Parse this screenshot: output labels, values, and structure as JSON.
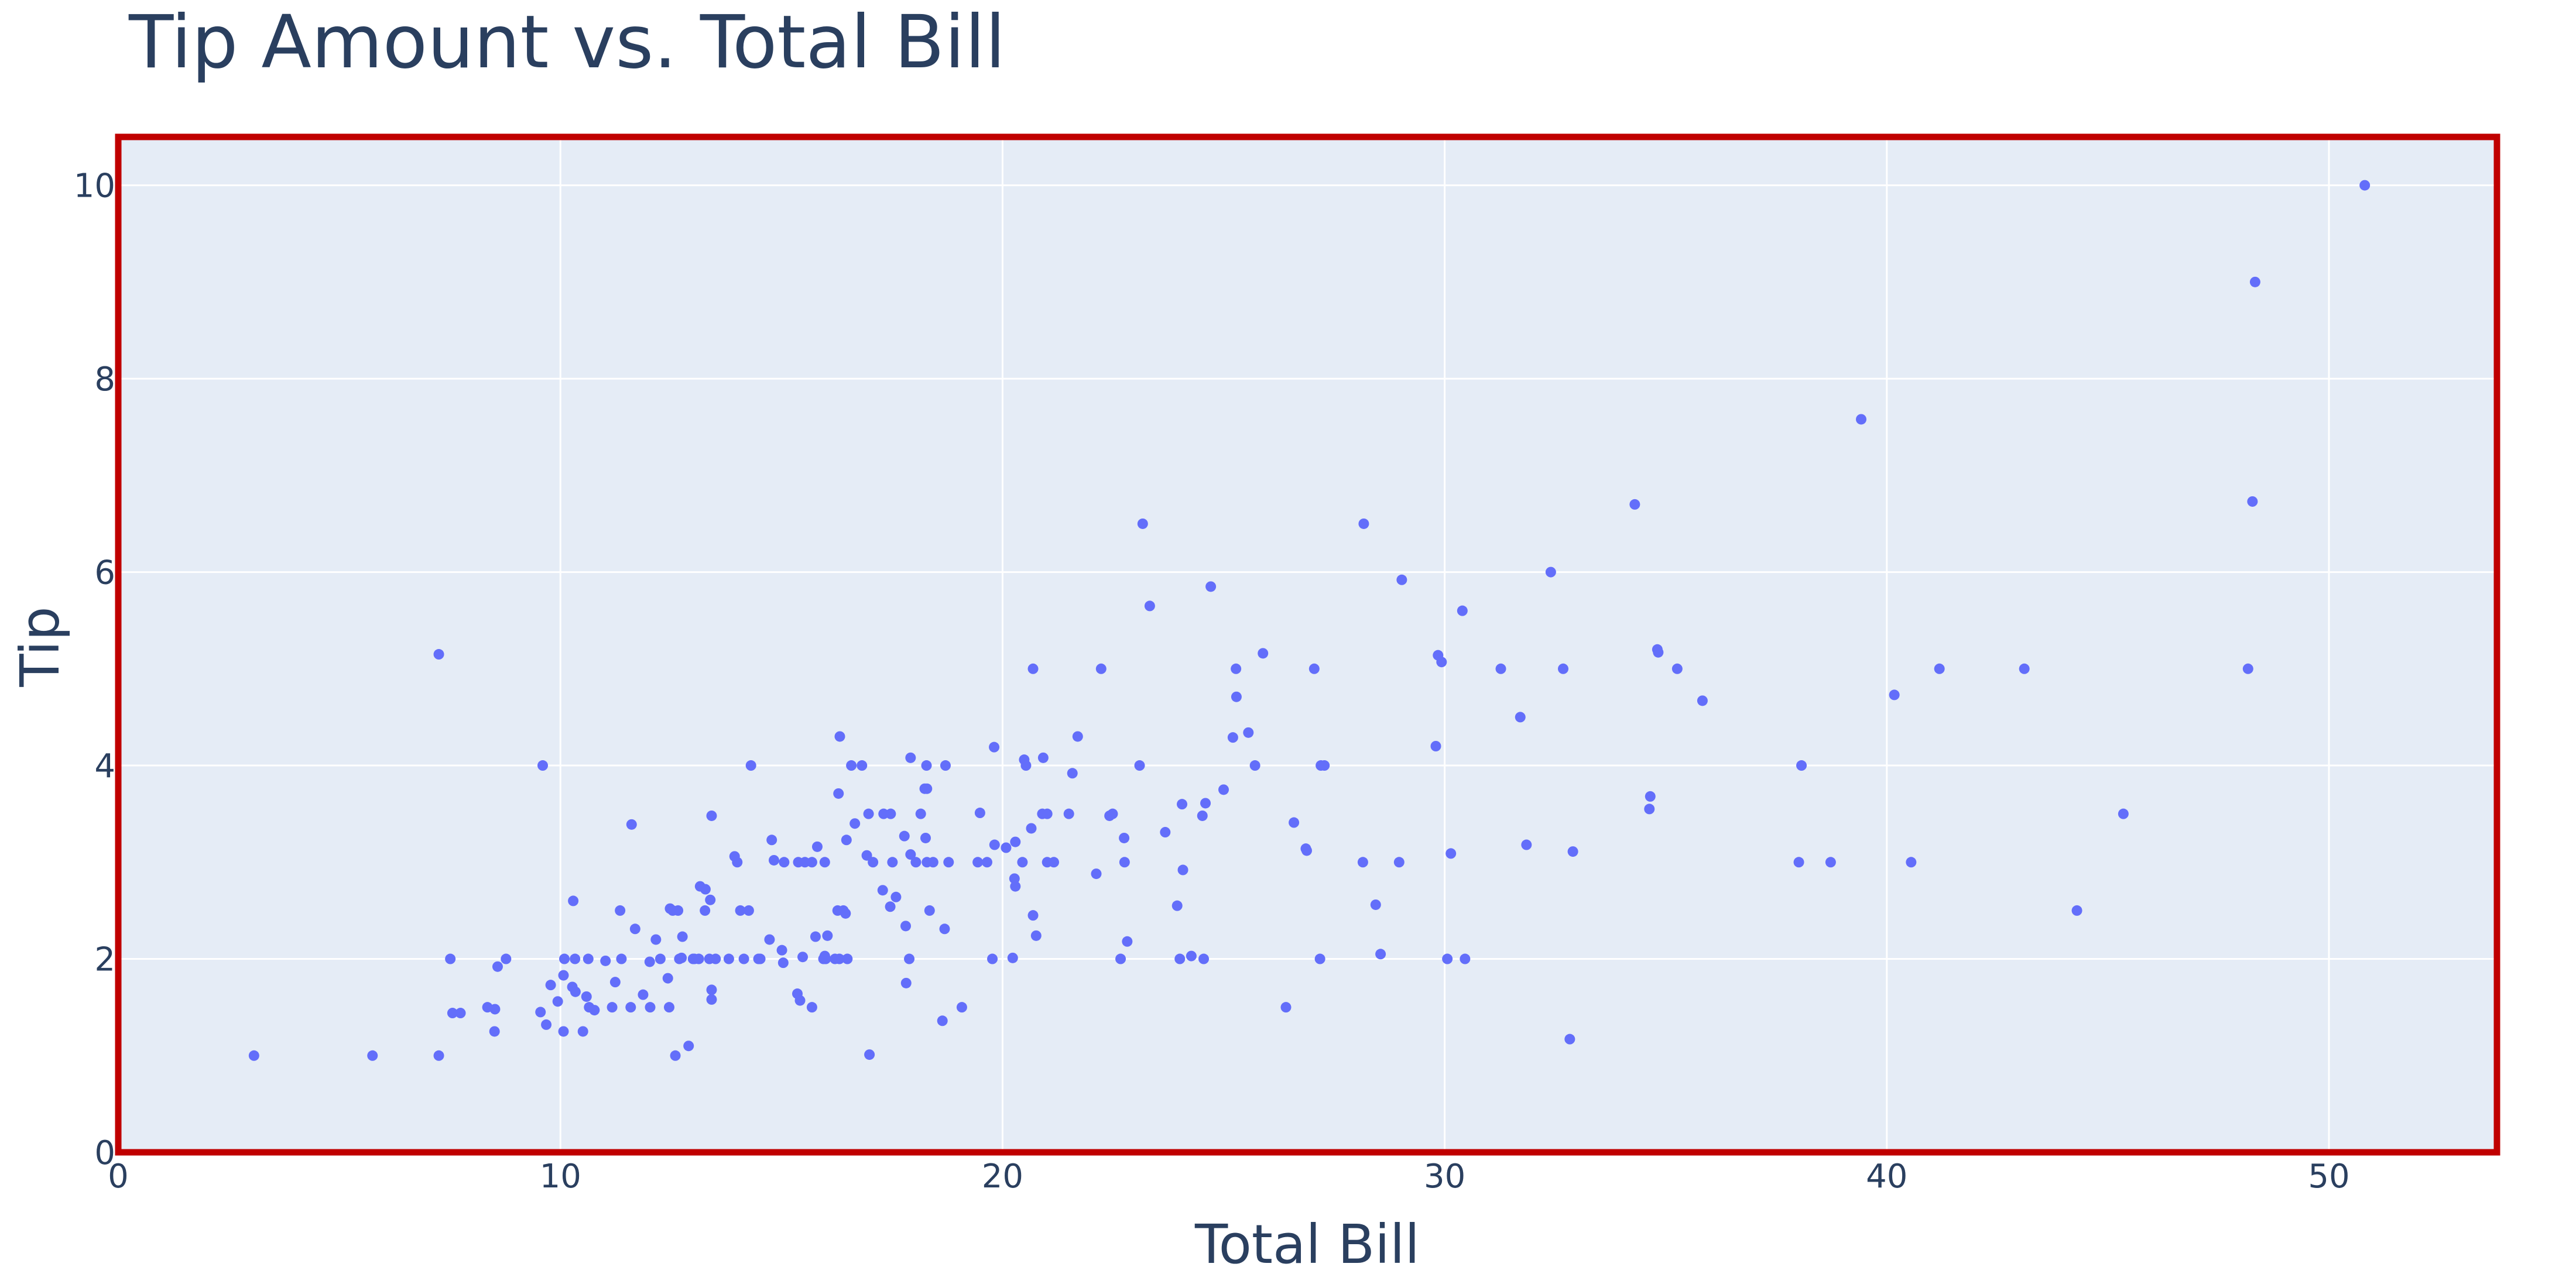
{
  "chart_data": {
    "type": "scatter",
    "title": "Tip Amount vs. Total Bill",
    "xlabel": "Total Bill",
    "ylabel": "Tip",
    "xlim": [
      0,
      53.8
    ],
    "ylim": [
      0,
      10.5
    ],
    "x_ticks": [
      0,
      10,
      20,
      30,
      40,
      50
    ],
    "y_ticks": [
      0,
      2,
      4,
      6,
      8,
      10
    ],
    "grid": true,
    "marker_color": "#636efa",
    "plot_background": "#e5ecf6",
    "frame_color": "#c00000",
    "points": [
      [
        3.07,
        1.0
      ],
      [
        5.75,
        1.0
      ],
      [
        7.25,
        1.0
      ],
      [
        7.25,
        5.15
      ],
      [
        7.51,
        2.0
      ],
      [
        7.56,
        1.44
      ],
      [
        7.74,
        1.44
      ],
      [
        8.35,
        1.5
      ],
      [
        8.51,
        1.25
      ],
      [
        8.52,
        1.48
      ],
      [
        8.58,
        1.92
      ],
      [
        8.77,
        2.0
      ],
      [
        9.55,
        1.45
      ],
      [
        9.6,
        4.0
      ],
      [
        9.68,
        1.32
      ],
      [
        9.78,
        1.73
      ],
      [
        9.94,
        1.56
      ],
      [
        10.07,
        1.25
      ],
      [
        10.07,
        1.83
      ],
      [
        10.09,
        2.0
      ],
      [
        10.27,
        1.71
      ],
      [
        10.29,
        2.6
      ],
      [
        10.33,
        2.0
      ],
      [
        10.34,
        1.66
      ],
      [
        10.51,
        1.25
      ],
      [
        10.59,
        1.61
      ],
      [
        10.63,
        2.0
      ],
      [
        10.65,
        1.5
      ],
      [
        10.77,
        1.47
      ],
      [
        11.02,
        1.98
      ],
      [
        11.17,
        1.5
      ],
      [
        11.24,
        1.76
      ],
      [
        11.35,
        2.5
      ],
      [
        11.38,
        2.0
      ],
      [
        11.59,
        1.5
      ],
      [
        11.61,
        3.39
      ],
      [
        11.69,
        2.31
      ],
      [
        11.87,
        1.63
      ],
      [
        12.02,
        1.97
      ],
      [
        12.03,
        1.5
      ],
      [
        12.16,
        2.2
      ],
      [
        12.26,
        2.0
      ],
      [
        12.43,
        1.8
      ],
      [
        12.46,
        1.5
      ],
      [
        12.48,
        2.52
      ],
      [
        12.54,
        2.5
      ],
      [
        12.6,
        1.0
      ],
      [
        12.66,
        2.5
      ],
      [
        12.69,
        2.0
      ],
      [
        12.74,
        2.01
      ],
      [
        12.76,
        2.23
      ],
      [
        12.9,
        1.1
      ],
      [
        13.0,
        2.0
      ],
      [
        13.03,
        2.0
      ],
      [
        13.13,
        2.0
      ],
      [
        13.16,
        2.75
      ],
      [
        13.27,
        2.5
      ],
      [
        13.28,
        2.72
      ],
      [
        13.37,
        2.0
      ],
      [
        13.39,
        2.61
      ],
      [
        13.42,
        3.48
      ],
      [
        13.42,
        1.58
      ],
      [
        13.42,
        1.68
      ],
      [
        13.51,
        2.0
      ],
      [
        13.81,
        2.0
      ],
      [
        13.94,
        3.06
      ],
      [
        14.0,
        3.0
      ],
      [
        14.07,
        2.5
      ],
      [
        14.15,
        2.0
      ],
      [
        14.26,
        2.5
      ],
      [
        14.31,
        4.0
      ],
      [
        14.48,
        2.0
      ],
      [
        14.52,
        2.0
      ],
      [
        14.73,
        2.2
      ],
      [
        14.78,
        3.23
      ],
      [
        14.83,
        3.02
      ],
      [
        15.01,
        2.09
      ],
      [
        15.04,
        1.96
      ],
      [
        15.06,
        3.0
      ],
      [
        15.36,
        1.64
      ],
      [
        15.38,
        3.0
      ],
      [
        15.42,
        1.57
      ],
      [
        15.48,
        2.02
      ],
      [
        15.53,
        3.0
      ],
      [
        15.69,
        3.0
      ],
      [
        15.69,
        1.5
      ],
      [
        15.77,
        2.23
      ],
      [
        15.81,
        3.16
      ],
      [
        15.95,
        2.0
      ],
      [
        15.98,
        2.03
      ],
      [
        15.98,
        3.0
      ],
      [
        16.0,
        2.0
      ],
      [
        16.04,
        2.24
      ],
      [
        16.21,
        2.0
      ],
      [
        16.27,
        2.5
      ],
      [
        16.29,
        3.71
      ],
      [
        16.31,
        2.0
      ],
      [
        16.32,
        4.3
      ],
      [
        16.4,
        2.5
      ],
      [
        16.45,
        2.47
      ],
      [
        16.47,
        3.23
      ],
      [
        16.49,
        2.0
      ],
      [
        16.58,
        4.0
      ],
      [
        16.66,
        3.4
      ],
      [
        16.82,
        4.0
      ],
      [
        16.93,
        3.07
      ],
      [
        16.97,
        3.5
      ],
      [
        16.99,
        1.01
      ],
      [
        17.07,
        3.0
      ],
      [
        17.29,
        2.71
      ],
      [
        17.31,
        3.5
      ],
      [
        17.46,
        2.54
      ],
      [
        17.47,
        3.5
      ],
      [
        17.51,
        3.0
      ],
      [
        17.59,
        2.64
      ],
      [
        17.78,
        3.27
      ],
      [
        17.81,
        2.34
      ],
      [
        17.82,
        1.75
      ],
      [
        17.89,
        2.0
      ],
      [
        17.92,
        4.08
      ],
      [
        17.92,
        3.08
      ],
      [
        18.04,
        3.0
      ],
      [
        18.15,
        3.5
      ],
      [
        18.24,
        3.76
      ],
      [
        18.26,
        3.25
      ],
      [
        18.28,
        4.0
      ],
      [
        18.29,
        3.76
      ],
      [
        18.29,
        3.0
      ],
      [
        18.35,
        2.5
      ],
      [
        18.43,
        3.0
      ],
      [
        18.64,
        1.36
      ],
      [
        18.69,
        2.31
      ],
      [
        18.71,
        4.0
      ],
      [
        18.78,
        3.0
      ],
      [
        19.08,
        1.5
      ],
      [
        19.44,
        3.0
      ],
      [
        19.49,
        3.51
      ],
      [
        19.65,
        3.0
      ],
      [
        19.77,
        2.0
      ],
      [
        19.81,
        4.19
      ],
      [
        19.82,
        3.18
      ],
      [
        20.08,
        3.15
      ],
      [
        20.23,
        2.01
      ],
      [
        20.27,
        2.83
      ],
      [
        20.29,
        2.75
      ],
      [
        20.29,
        3.21
      ],
      [
        20.45,
        3.0
      ],
      [
        20.49,
        4.06
      ],
      [
        20.53,
        4.0
      ],
      [
        20.65,
        3.35
      ],
      [
        20.69,
        5.0
      ],
      [
        20.69,
        2.45
      ],
      [
        20.76,
        2.24
      ],
      [
        20.9,
        3.5
      ],
      [
        20.92,
        4.08
      ],
      [
        21.01,
        3.5
      ],
      [
        21.01,
        3.0
      ],
      [
        21.16,
        3.0
      ],
      [
        21.5,
        3.5
      ],
      [
        21.58,
        3.92
      ],
      [
        21.7,
        4.3
      ],
      [
        22.12,
        2.88
      ],
      [
        22.23,
        5.0
      ],
      [
        22.42,
        3.48
      ],
      [
        22.49,
        3.5
      ],
      [
        22.67,
        2.0
      ],
      [
        22.75,
        3.25
      ],
      [
        22.76,
        3.0
      ],
      [
        22.82,
        2.18
      ],
      [
        23.1,
        4.0
      ],
      [
        23.17,
        6.5
      ],
      [
        23.33,
        5.65
      ],
      [
        23.68,
        3.31
      ],
      [
        23.95,
        2.55
      ],
      [
        24.01,
        2.0
      ],
      [
        24.06,
        3.6
      ],
      [
        24.08,
        2.92
      ],
      [
        24.27,
        2.03
      ],
      [
        24.52,
        3.48
      ],
      [
        24.55,
        2.0
      ],
      [
        24.59,
        3.61
      ],
      [
        24.71,
        5.85
      ],
      [
        25.0,
        3.75
      ],
      [
        25.21,
        4.29
      ],
      [
        25.28,
        5.0
      ],
      [
        25.29,
        4.71
      ],
      [
        25.56,
        4.34
      ],
      [
        25.71,
        4.0
      ],
      [
        25.89,
        5.16
      ],
      [
        26.41,
        1.5
      ],
      [
        26.59,
        3.41
      ],
      [
        26.86,
        3.14
      ],
      [
        26.88,
        3.12
      ],
      [
        27.05,
        5.0
      ],
      [
        27.18,
        2.0
      ],
      [
        27.2,
        4.0
      ],
      [
        27.28,
        4.0
      ],
      [
        28.15,
        3.0
      ],
      [
        28.17,
        6.5
      ],
      [
        28.44,
        2.56
      ],
      [
        28.55,
        2.05
      ],
      [
        28.97,
        3.0
      ],
      [
        29.03,
        5.92
      ],
      [
        29.8,
        4.2
      ],
      [
        29.85,
        5.14
      ],
      [
        29.93,
        5.07
      ],
      [
        30.06,
        2.0
      ],
      [
        30.14,
        3.09
      ],
      [
        30.4,
        5.6
      ],
      [
        30.46,
        2.0
      ],
      [
        31.27,
        5.0
      ],
      [
        31.71,
        4.5
      ],
      [
        31.85,
        3.18
      ],
      [
        32.4,
        6.0
      ],
      [
        32.68,
        5.0
      ],
      [
        32.83,
        1.17
      ],
      [
        32.9,
        3.11
      ],
      [
        34.3,
        6.7
      ],
      [
        34.63,
        3.55
      ],
      [
        34.65,
        3.68
      ],
      [
        34.81,
        5.2
      ],
      [
        34.83,
        5.17
      ],
      [
        35.26,
        5.0
      ],
      [
        35.83,
        4.67
      ],
      [
        38.01,
        3.0
      ],
      [
        38.07,
        4.0
      ],
      [
        38.73,
        3.0
      ],
      [
        39.42,
        7.58
      ],
      [
        40.17,
        4.73
      ],
      [
        40.55,
        3.0
      ],
      [
        41.19,
        5.0
      ],
      [
        43.11,
        5.0
      ],
      [
        44.3,
        2.5
      ],
      [
        45.35,
        3.5
      ],
      [
        48.17,
        5.0
      ],
      [
        48.27,
        6.73
      ],
      [
        48.33,
        9.0
      ],
      [
        50.81,
        10.0
      ]
    ]
  }
}
